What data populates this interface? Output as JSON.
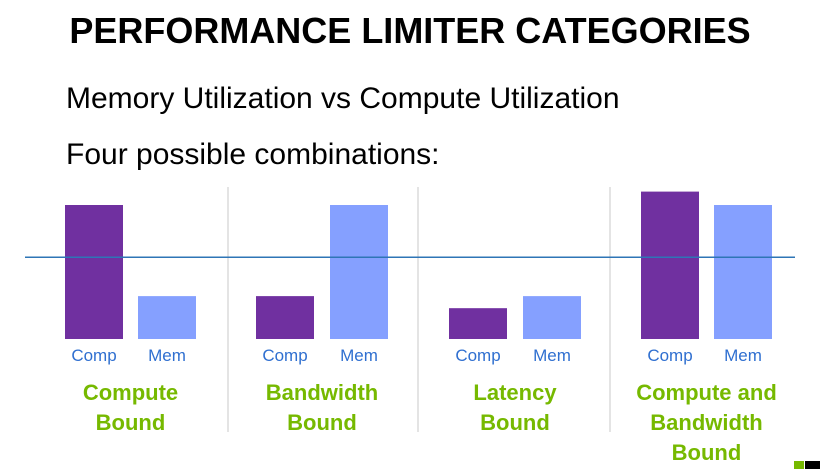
{
  "slide": {
    "title": "PERFORMANCE LIMITER CATEGORIES",
    "bullets": [
      "Memory Utilization vs Compute Utilization",
      "Four possible combinations:"
    ]
  },
  "colors": {
    "comp": "#7030a0",
    "mem": "#85a0ff",
    "threshold": "#2e75b6",
    "label_green": "#76b900",
    "tick_blue": "#2f6fd0",
    "divider": "#c8c8c8"
  },
  "chart_data": {
    "type": "bar",
    "series_names": [
      "Comp",
      "Mem"
    ],
    "groups": [
      {
        "label_lines": [
          "Compute",
          "Bound"
        ],
        "values": [
          100,
          32
        ]
      },
      {
        "label_lines": [
          "Bandwidth",
          "Bound"
        ],
        "values": [
          32,
          100
        ]
      },
      {
        "label_lines": [
          "Latency",
          "Bound"
        ],
        "values": [
          23,
          32
        ]
      },
      {
        "label_lines": [
          "Compute and",
          "Bandwidth",
          "Bound"
        ],
        "values": [
          110,
          100
        ]
      }
    ],
    "threshold": 61,
    "ylim": [
      0,
      110
    ],
    "grid": false
  }
}
